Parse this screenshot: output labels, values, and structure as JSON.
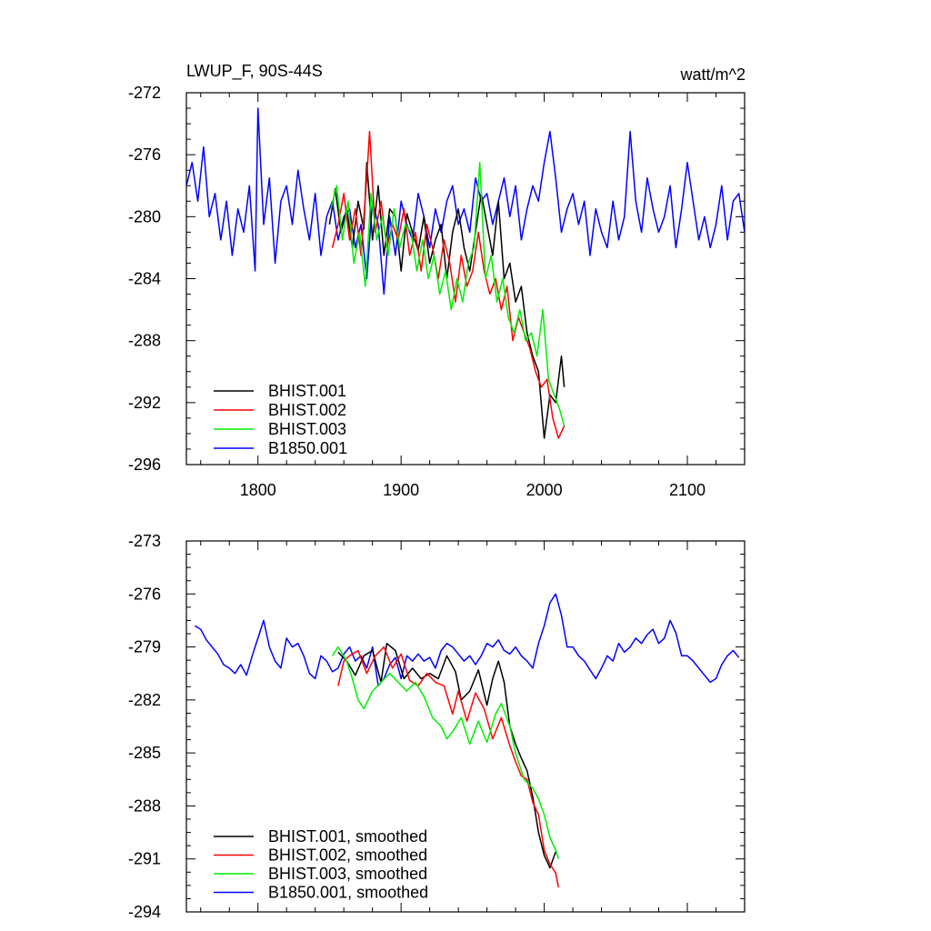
{
  "chart_data": [
    {
      "type": "line",
      "title": "LWUP_F, 90S-44S",
      "units": "watt/m^2",
      "xlim": [
        1750,
        2140
      ],
      "ylim": [
        -296,
        -272
      ],
      "x_ticks": [
        1800,
        1900,
        2000,
        2100
      ],
      "x_tick_labels": [
        "1800",
        "1900",
        "2000",
        "2100"
      ],
      "y_ticks": [
        -272,
        -276,
        -280,
        -284,
        -288,
        -292,
        -296
      ],
      "y_tick_labels": [
        "-272",
        "-276",
        "-280",
        "-284",
        "-288",
        "-292",
        "-296"
      ],
      "grid": false,
      "legend_position": "bottom-left",
      "series": [
        {
          "name": "BHIST.001",
          "color": "#000000",
          "x": [
            1850,
            1854,
            1858,
            1862,
            1866,
            1870,
            1874,
            1876,
            1880,
            1884,
            1888,
            1892,
            1896,
            1900,
            1904,
            1908,
            1912,
            1916,
            1920,
            1924,
            1928,
            1932,
            1936,
            1940,
            1944,
            1948,
            1952,
            1956,
            1960,
            1964,
            1968,
            1972,
            1976,
            1980,
            1984,
            1988,
            1992,
            1996,
            2000,
            2004,
            2008,
            2012,
            2014
          ],
          "y": [
            -280.5,
            -278.2,
            -281.0,
            -279.5,
            -282.0,
            -279.0,
            -280.8,
            -276.5,
            -281.5,
            -278.0,
            -282.5,
            -279.5,
            -280.0,
            -283.5,
            -279.8,
            -281.0,
            -282.2,
            -280.0,
            -283.0,
            -281.5,
            -280.5,
            -284.0,
            -281.0,
            -279.5,
            -282.0,
            -283.5,
            -281.0,
            -278.5,
            -280.5,
            -282.5,
            -279.0,
            -284.0,
            -283.0,
            -285.5,
            -284.5,
            -287.5,
            -289.0,
            -290.0,
            -294.3,
            -291.5,
            -292.0,
            -289.0,
            -291.0
          ]
        },
        {
          "name": "BHIST.002",
          "color": "#ff0000",
          "x": [
            1852,
            1856,
            1860,
            1864,
            1868,
            1872,
            1876,
            1878,
            1882,
            1886,
            1890,
            1894,
            1898,
            1902,
            1906,
            1910,
            1914,
            1918,
            1922,
            1926,
            1930,
            1934,
            1938,
            1942,
            1946,
            1950,
            1954,
            1958,
            1962,
            1966,
            1970,
            1974,
            1978,
            1982,
            1986,
            1990,
            1994,
            1998,
            2002,
            2006,
            2010,
            2014
          ],
          "y": [
            -282.0,
            -280.5,
            -278.5,
            -281.5,
            -279.5,
            -282.5,
            -277.5,
            -274.5,
            -281.0,
            -279.0,
            -282.0,
            -280.5,
            -281.5,
            -279.5,
            -282.5,
            -281.0,
            -283.5,
            -280.5,
            -282.0,
            -284.0,
            -281.5,
            -283.0,
            -285.5,
            -282.5,
            -284.5,
            -283.5,
            -281.0,
            -283.5,
            -285.0,
            -284.0,
            -286.0,
            -284.5,
            -288.0,
            -286.5,
            -287.5,
            -288.5,
            -290.0,
            -291.0,
            -290.5,
            -293.0,
            -294.3,
            -293.5
          ]
        },
        {
          "name": "BHIST.003",
          "color": "#00ee00",
          "x": [
            1851,
            1855,
            1859,
            1863,
            1867,
            1871,
            1875,
            1879,
            1883,
            1887,
            1891,
            1895,
            1899,
            1903,
            1907,
            1911,
            1915,
            1919,
            1923,
            1927,
            1931,
            1935,
            1939,
            1943,
            1947,
            1951,
            1955,
            1959,
            1963,
            1967,
            1971,
            1975,
            1979,
            1983,
            1987,
            1991,
            1995,
            1999,
            2003,
            2007,
            2011,
            2014
          ],
          "y": [
            -279.5,
            -278.0,
            -281.5,
            -279.0,
            -283.0,
            -281.0,
            -284.5,
            -278.5,
            -281.5,
            -280.0,
            -282.5,
            -279.5,
            -282.0,
            -280.5,
            -281.0,
            -283.5,
            -281.5,
            -284.0,
            -282.5,
            -285.0,
            -283.5,
            -286.0,
            -284.0,
            -285.5,
            -283.0,
            -282.0,
            -276.5,
            -284.0,
            -282.5,
            -285.5,
            -284.0,
            -286.5,
            -287.5,
            -286.0,
            -288.0,
            -287.5,
            -289.0,
            -286.0,
            -290.5,
            -291.5,
            -292.5,
            -293.5
          ]
        },
        {
          "name": "B1850.001",
          "color": "#0000ff",
          "x": [
            1750,
            1754,
            1758,
            1762,
            1766,
            1770,
            1774,
            1778,
            1782,
            1786,
            1790,
            1794,
            1798,
            1800,
            1804,
            1808,
            1812,
            1816,
            1820,
            1824,
            1828,
            1832,
            1836,
            1840,
            1844,
            1848,
            1852,
            1856,
            1860,
            1864,
            1868,
            1872,
            1876,
            1880,
            1884,
            1888,
            1892,
            1896,
            1900,
            1904,
            1908,
            1912,
            1916,
            1920,
            1924,
            1928,
            1932,
            1936,
            1940,
            1944,
            1948,
            1952,
            1956,
            1960,
            1964,
            1968,
            1972,
            1976,
            1980,
            1984,
            1988,
            1992,
            1996,
            2000,
            2004,
            2008,
            2012,
            2016,
            2020,
            2024,
            2028,
            2032,
            2036,
            2040,
            2044,
            2048,
            2052,
            2056,
            2060,
            2064,
            2068,
            2072,
            2076,
            2080,
            2084,
            2088,
            2092,
            2096,
            2100,
            2104,
            2108,
            2112,
            2116,
            2120,
            2124,
            2128,
            2132,
            2136,
            2140
          ],
          "y": [
            -278.0,
            -276.5,
            -279.0,
            -275.5,
            -280.0,
            -278.5,
            -281.5,
            -279.0,
            -282.5,
            -279.5,
            -281.0,
            -278.0,
            -283.5,
            -273.0,
            -280.5,
            -277.5,
            -283.0,
            -279.0,
            -278.0,
            -280.5,
            -277.0,
            -279.5,
            -281.5,
            -278.5,
            -282.5,
            -280.0,
            -279.0,
            -281.5,
            -280.0,
            -279.5,
            -282.0,
            -280.5,
            -284.0,
            -279.0,
            -280.5,
            -285.0,
            -280.0,
            -282.5,
            -279.0,
            -280.5,
            -281.5,
            -278.5,
            -280.0,
            -282.0,
            -279.5,
            -281.0,
            -279.0,
            -278.0,
            -280.5,
            -279.5,
            -281.0,
            -277.5,
            -279.0,
            -278.5,
            -280.5,
            -279.0,
            -277.5,
            -280.0,
            -278.0,
            -281.5,
            -279.5,
            -278.0,
            -279.0,
            -276.5,
            -274.5,
            -277.5,
            -281.0,
            -279.5,
            -278.5,
            -280.5,
            -279.0,
            -282.5,
            -279.5,
            -281.0,
            -282.0,
            -279.0,
            -281.5,
            -280.0,
            -274.5,
            -279.0,
            -281.0,
            -277.5,
            -279.5,
            -281.0,
            -280.0,
            -278.0,
            -282.0,
            -279.5,
            -276.5,
            -279.0,
            -281.5,
            -280.0,
            -282.0,
            -280.5,
            -278.0,
            -281.5,
            -279.0,
            -278.5,
            -281.0
          ]
        }
      ]
    },
    {
      "type": "line",
      "xlim": [
        1750,
        2140
      ],
      "ylim": [
        -294,
        -273
      ],
      "x_ticks": [
        1800,
        1900,
        2000,
        2100
      ],
      "y_ticks": [
        -273,
        -276,
        -279,
        -282,
        -285,
        -288,
        -291,
        -294
      ],
      "y_tick_labels": [
        "-273",
        "-276",
        "-279",
        "-282",
        "-285",
        "-288",
        "-291",
        "-294"
      ],
      "grid": false,
      "legend_position": "bottom-left",
      "series": [
        {
          "name": "BHIST.001, smoothed",
          "color": "#000000",
          "x": [
            1856,
            1862,
            1868,
            1874,
            1880,
            1886,
            1890,
            1896,
            1902,
            1908,
            1914,
            1920,
            1926,
            1932,
            1938,
            1942,
            1948,
            1954,
            1960,
            1964,
            1968,
            1972,
            1976,
            1980,
            1984,
            1988,
            1992,
            1996,
            2000,
            2004,
            2008
          ],
          "y": [
            -279.3,
            -279.8,
            -280.6,
            -279.5,
            -279.2,
            -281.0,
            -278.8,
            -279.2,
            -280.8,
            -280.2,
            -280.8,
            -280.5,
            -280.8,
            -279.5,
            -280.4,
            -282.0,
            -281.5,
            -280.3,
            -282.3,
            -280.8,
            -279.8,
            -281.0,
            -283.5,
            -284.5,
            -285.3,
            -286.0,
            -287.5,
            -289.5,
            -290.8,
            -291.5,
            -290.6
          ]
        },
        {
          "name": "BHIST.002, smoothed",
          "color": "#ff0000",
          "x": [
            1856,
            1860,
            1864,
            1870,
            1876,
            1882,
            1888,
            1894,
            1900,
            1906,
            1912,
            1918,
            1924,
            1930,
            1936,
            1940,
            1946,
            1952,
            1958,
            1964,
            1970,
            1976,
            1980,
            1984,
            1988,
            1992,
            1996,
            2000,
            2004,
            2008,
            2010
          ],
          "y": [
            -281.2,
            -279.8,
            -279.5,
            -279.2,
            -280.5,
            -279.5,
            -279.0,
            -280.2,
            -279.4,
            -280.9,
            -281.2,
            -280.5,
            -281.0,
            -281.2,
            -282.8,
            -281.5,
            -283.2,
            -281.6,
            -282.5,
            -284.2,
            -283.0,
            -284.6,
            -285.5,
            -286.3,
            -286.5,
            -287.8,
            -288.5,
            -290.5,
            -291.3,
            -291.8,
            -292.6
          ]
        },
        {
          "name": "BHIST.003, smoothed",
          "color": "#00ee00",
          "x": [
            1852,
            1856,
            1862,
            1866,
            1870,
            1874,
            1880,
            1886,
            1892,
            1898,
            1904,
            1910,
            1916,
            1922,
            1928,
            1932,
            1936,
            1942,
            1948,
            1954,
            1960,
            1966,
            1970,
            1976,
            1980,
            1986,
            1992,
            1996,
            2000,
            2004,
            2008,
            2010
          ],
          "y": [
            -279.5,
            -279.0,
            -279.8,
            -280.8,
            -282.0,
            -282.5,
            -281.5,
            -281.0,
            -280.5,
            -281.0,
            -281.5,
            -281.0,
            -281.8,
            -283.0,
            -283.5,
            -284.2,
            -283.8,
            -283.0,
            -284.5,
            -283.2,
            -284.4,
            -282.8,
            -282.2,
            -283.5,
            -285.0,
            -286.5,
            -287.0,
            -287.6,
            -288.5,
            -289.8,
            -290.5,
            -291.0
          ]
        },
        {
          "name": "B1850.001, smoothed",
          "color": "#0000ff",
          "x": [
            1756,
            1760,
            1764,
            1768,
            1772,
            1776,
            1780,
            1784,
            1788,
            1792,
            1796,
            1800,
            1804,
            1808,
            1812,
            1816,
            1820,
            1824,
            1828,
            1832,
            1836,
            1840,
            1844,
            1848,
            1852,
            1856,
            1860,
            1864,
            1868,
            1872,
            1876,
            1880,
            1884,
            1888,
            1892,
            1896,
            1900,
            1904,
            1908,
            1912,
            1916,
            1920,
            1924,
            1928,
            1932,
            1936,
            1940,
            1944,
            1948,
            1952,
            1956,
            1960,
            1964,
            1968,
            1972,
            1976,
            1980,
            1984,
            1988,
            1992,
            1996,
            2000,
            2004,
            2008,
            2012,
            2016,
            2020,
            2024,
            2028,
            2032,
            2036,
            2040,
            2044,
            2048,
            2052,
            2056,
            2060,
            2064,
            2068,
            2072,
            2076,
            2080,
            2084,
            2088,
            2092,
            2096,
            2100,
            2104,
            2108,
            2112,
            2116,
            2120,
            2124,
            2128,
            2132,
            2136
          ],
          "y": [
            -277.8,
            -278.0,
            -278.6,
            -279.0,
            -279.4,
            -280.0,
            -280.2,
            -280.5,
            -280.0,
            -280.6,
            -279.5,
            -278.5,
            -277.5,
            -279.0,
            -279.8,
            -280.2,
            -278.5,
            -279.0,
            -278.8,
            -279.5,
            -280.5,
            -280.8,
            -279.5,
            -279.8,
            -280.4,
            -280.2,
            -279.4,
            -279.0,
            -279.8,
            -279.5,
            -280.2,
            -279.0,
            -281.2,
            -280.8,
            -280.0,
            -279.6,
            -280.8,
            -279.5,
            -279.8,
            -279.4,
            -279.8,
            -279.6,
            -280.2,
            -279.2,
            -278.8,
            -279.0,
            -279.4,
            -279.8,
            -279.5,
            -280.0,
            -279.5,
            -278.8,
            -279.0,
            -278.6,
            -279.2,
            -279.4,
            -279.0,
            -279.5,
            -279.8,
            -280.2,
            -278.8,
            -277.8,
            -276.5,
            -276.0,
            -277.2,
            -279.0,
            -279.0,
            -279.5,
            -279.8,
            -280.3,
            -280.8,
            -280.2,
            -279.5,
            -279.8,
            -278.8,
            -279.3,
            -279.0,
            -278.5,
            -278.8,
            -278.3,
            -278.0,
            -278.8,
            -278.5,
            -277.5,
            -278.2,
            -279.5,
            -279.5,
            -279.8,
            -280.2,
            -280.6,
            -281.0,
            -280.8,
            -280.0,
            -279.5,
            -279.2,
            -279.6
          ]
        }
      ]
    }
  ]
}
